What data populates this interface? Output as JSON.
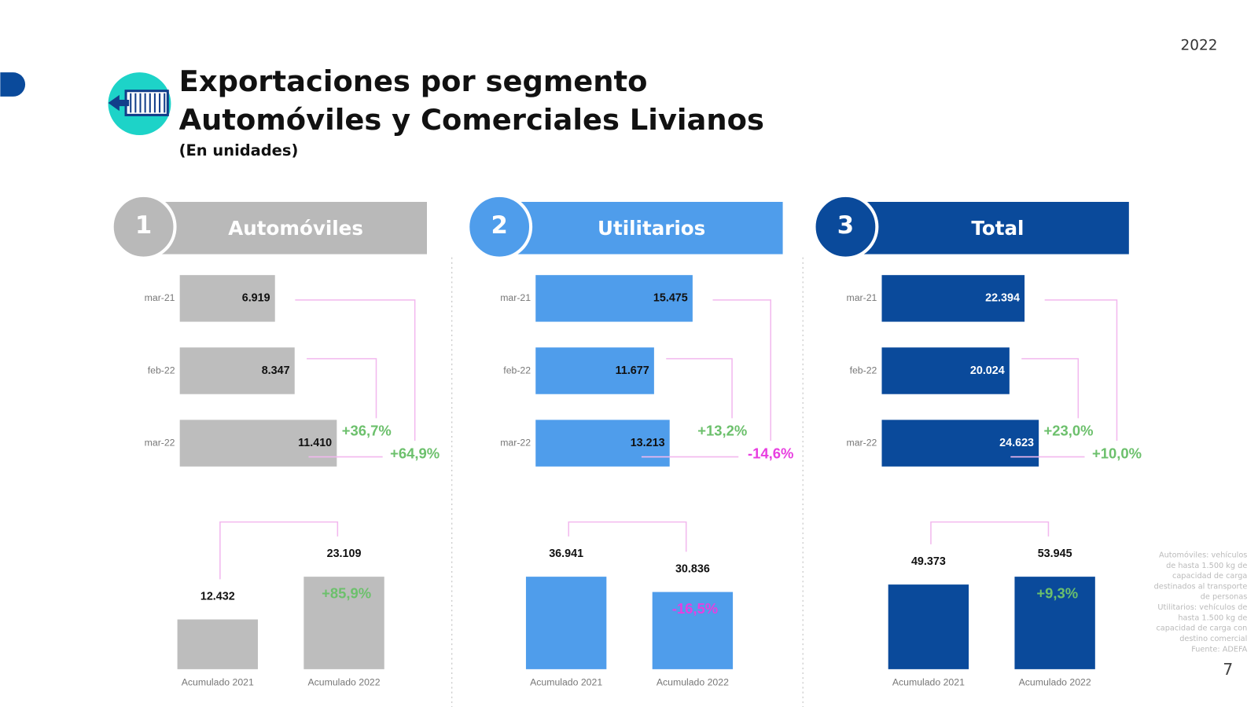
{
  "year": "2022",
  "title": [
    "Exportaciones por segmento",
    "Automóviles y Comerciales Livianos"
  ],
  "subtitle": "(En unidades)",
  "panel_numbers": [
    "1",
    "2",
    "3"
  ],
  "footnote": [
    "Automóviles: vehículos",
    "de hasta 1.500 kg de",
    "capacidad de carga",
    "destinados al transporte",
    "de personas",
    "Utilitarios: vehículos de",
    "hasta 1.500 kg de",
    "capacidad de carga con",
    "destino comercial",
    "Fuente: ADEFA"
  ],
  "page_number": "7",
  "chart_data": [
    {
      "type": "hbar",
      "title": "Automóviles",
      "categories": [
        "mar-21",
        "feb-22",
        "mar-22"
      ],
      "values": [
        6919,
        8347,
        11410
      ],
      "value_labels": [
        "6.919",
        "8.347",
        "11.410"
      ],
      "color": "#bdbdbd",
      "header_color": "#b9b9b9",
      "label_color": "#111111",
      "annotations": [
        "+36,7%",
        "+64,9%"
      ]
    },
    {
      "type": "hbar",
      "title": "Utilitarios",
      "categories": [
        "mar-21",
        "feb-22",
        "mar-22"
      ],
      "values": [
        15475,
        11677,
        13213
      ],
      "value_labels": [
        "15.475",
        "11.677",
        "13.213"
      ],
      "color": "#4f9deb",
      "header_color": "#4f9deb",
      "label_color": "#111111",
      "annotations": [
        "+13,2%",
        "-14,6%"
      ]
    },
    {
      "type": "hbar",
      "title": "Total",
      "categories": [
        "mar-21",
        "feb-22",
        "mar-22"
      ],
      "values": [
        22394,
        20024,
        24623
      ],
      "value_labels": [
        "22.394",
        "20.024",
        "24.623"
      ],
      "color": "#0a4a9b",
      "header_color": "#0a4a9b",
      "label_color": "#ffffff",
      "annotations": [
        "+23,0%",
        "+10,0%"
      ]
    },
    {
      "type": "bar",
      "categories": [
        "Acumulado 2021",
        "Acumulado 2022"
      ],
      "values": [
        12432,
        23109
      ],
      "value_labels": [
        "12.432",
        "23.109"
      ],
      "color": "#bdbdbd",
      "annotation": "+85,9%"
    },
    {
      "type": "bar",
      "categories": [
        "Acumulado 2021",
        "Acumulado 2022"
      ],
      "values": [
        36941,
        30836
      ],
      "value_labels": [
        "36.941",
        "30.836"
      ],
      "color": "#4f9deb",
      "annotation": "-16,5%"
    },
    {
      "type": "bar",
      "categories": [
        "Acumulado 2021",
        "Acumulado 2022"
      ],
      "values": [
        49373,
        53945
      ],
      "value_labels": [
        "49.373",
        "53.945"
      ],
      "color": "#0a4a9b",
      "annotation": "+9,3%"
    }
  ]
}
